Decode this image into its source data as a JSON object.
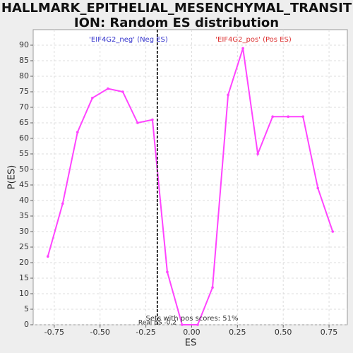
{
  "chart_data": {
    "type": "line",
    "title_lines": [
      "HALLMARK_EPITHELIAL_MESENCHYMAL_TRANSIT",
      "ION: Random ES distribution"
    ],
    "xlabel": "ES",
    "ylabel": "P(ES)",
    "x": [
      -0.785,
      -0.704,
      -0.623,
      -0.542,
      -0.457,
      -0.376,
      -0.295,
      -0.214,
      -0.133,
      -0.052,
      0.033,
      0.114,
      0.199,
      0.28,
      0.361,
      0.442,
      0.527,
      0.608,
      0.689,
      0.77
    ],
    "series": [
      {
        "color": "#ff44ff",
        "values": [
          22,
          39,
          62,
          73,
          76,
          75,
          65,
          66,
          17,
          0,
          0,
          12,
          74,
          89,
          55,
          67,
          67,
          67,
          44,
          30
        ]
      }
    ],
    "xlim": [
      -0.865,
      0.85
    ],
    "ylim": [
      0,
      95
    ],
    "xticks": [
      -0.75,
      {
        "value": -0.5,
        "label": "-0.50"
      },
      -0.25,
      {
        "value": 0,
        "label": "0.00"
      },
      0.25,
      {
        "value": 0.5,
        "label": "0.50"
      },
      0.75
    ],
    "yticks": [
      0,
      5,
      10,
      15,
      20,
      25,
      30,
      35,
      40,
      45,
      50,
      55,
      60,
      65,
      70,
      75,
      80,
      85,
      90
    ],
    "grid": true,
    "real_es": -0.187,
    "real_es_label": "Real ES -0.2",
    "neg_label": "'EIF4G2_neg' (Neg ES)",
    "neg_color": "#3333cc",
    "pos_label": "'EIF4G2_pos' (Pos ES)",
    "pos_color": "#dd3333",
    "footnote": "Sets with pos scores: 51%"
  }
}
